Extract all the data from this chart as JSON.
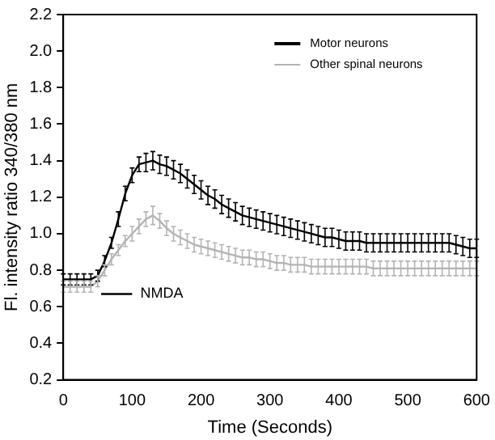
{
  "chart_data": {
    "type": "line",
    "xlabel": "Time (Seconds)",
    "ylabel": "Fl. intensity ratio 340/380 nm",
    "x": [
      0,
      10,
      20,
      30,
      40,
      50,
      60,
      70,
      80,
      90,
      100,
      110,
      120,
      130,
      140,
      150,
      160,
      170,
      180,
      190,
      200,
      210,
      220,
      230,
      240,
      250,
      260,
      270,
      280,
      290,
      300,
      310,
      320,
      330,
      340,
      350,
      360,
      370,
      380,
      390,
      400,
      410,
      420,
      430,
      440,
      450,
      460,
      470,
      480,
      490,
      500,
      510,
      520,
      530,
      540,
      550,
      560,
      570,
      580,
      590,
      600
    ],
    "series": [
      {
        "name": "Motor neurons",
        "color": "#000000",
        "values": [
          0.75,
          0.75,
          0.75,
          0.75,
          0.75,
          0.77,
          0.85,
          0.95,
          1.08,
          1.22,
          1.32,
          1.38,
          1.39,
          1.4,
          1.38,
          1.37,
          1.35,
          1.33,
          1.3,
          1.27,
          1.24,
          1.21,
          1.19,
          1.16,
          1.14,
          1.12,
          1.1,
          1.09,
          1.08,
          1.07,
          1.06,
          1.05,
          1.04,
          1.03,
          1.02,
          1.01,
          1.0,
          0.99,
          0.98,
          0.98,
          0.97,
          0.96,
          0.96,
          0.96,
          0.95,
          0.95,
          0.95,
          0.95,
          0.95,
          0.95,
          0.95,
          0.95,
          0.95,
          0.95,
          0.95,
          0.95,
          0.95,
          0.94,
          0.93,
          0.92,
          0.92
        ],
        "errors": [
          0.03,
          0.03,
          0.03,
          0.03,
          0.03,
          0.03,
          0.03,
          0.03,
          0.04,
          0.04,
          0.04,
          0.04,
          0.05,
          0.05,
          0.05,
          0.05,
          0.05,
          0.05,
          0.05,
          0.05,
          0.05,
          0.05,
          0.05,
          0.05,
          0.05,
          0.05,
          0.05,
          0.05,
          0.05,
          0.05,
          0.05,
          0.05,
          0.05,
          0.05,
          0.05,
          0.05,
          0.05,
          0.05,
          0.05,
          0.05,
          0.05,
          0.05,
          0.05,
          0.05,
          0.05,
          0.05,
          0.05,
          0.05,
          0.05,
          0.05,
          0.05,
          0.05,
          0.05,
          0.05,
          0.05,
          0.05,
          0.05,
          0.05,
          0.05,
          0.05,
          0.05
        ]
      },
      {
        "name": "Other spinal neurons",
        "color": "#b4b4b4",
        "values": [
          0.71,
          0.71,
          0.71,
          0.71,
          0.71,
          0.74,
          0.8,
          0.86,
          0.91,
          0.96,
          1.0,
          1.04,
          1.08,
          1.1,
          1.07,
          1.03,
          1.0,
          0.98,
          0.96,
          0.94,
          0.93,
          0.92,
          0.91,
          0.9,
          0.89,
          0.88,
          0.87,
          0.87,
          0.86,
          0.86,
          0.85,
          0.84,
          0.84,
          0.83,
          0.83,
          0.83,
          0.82,
          0.82,
          0.82,
          0.82,
          0.82,
          0.82,
          0.82,
          0.82,
          0.82,
          0.81,
          0.81,
          0.81,
          0.81,
          0.81,
          0.81,
          0.81,
          0.81,
          0.81,
          0.81,
          0.81,
          0.81,
          0.81,
          0.81,
          0.81,
          0.81
        ],
        "errors": [
          0.03,
          0.03,
          0.03,
          0.03,
          0.03,
          0.03,
          0.03,
          0.03,
          0.03,
          0.03,
          0.04,
          0.04,
          0.04,
          0.05,
          0.04,
          0.04,
          0.04,
          0.04,
          0.04,
          0.04,
          0.04,
          0.04,
          0.04,
          0.04,
          0.04,
          0.04,
          0.04,
          0.04,
          0.04,
          0.04,
          0.04,
          0.04,
          0.04,
          0.04,
          0.04,
          0.04,
          0.04,
          0.04,
          0.04,
          0.04,
          0.04,
          0.04,
          0.04,
          0.04,
          0.04,
          0.04,
          0.04,
          0.04,
          0.04,
          0.04,
          0.04,
          0.04,
          0.04,
          0.04,
          0.04,
          0.04,
          0.04,
          0.04,
          0.04,
          0.04,
          0.04
        ]
      },
      {
        "name": "NMDA",
        "color": "#000000",
        "x": [
          55,
          100
        ],
        "values": [
          0.67,
          0.67
        ]
      }
    ],
    "xlim": [
      0,
      600
    ],
    "xticks": [
      0,
      100,
      200,
      300,
      400,
      500,
      600
    ],
    "ylim": [
      0.2,
      2.2
    ],
    "yticks": [
      {
        "value": 0.2,
        "label": "0.2"
      },
      {
        "value": 0.4,
        "label": "0.4"
      },
      {
        "value": 0.6,
        "label": "0.6"
      },
      {
        "value": 0.8,
        "label": "0.8"
      },
      {
        "value": 1.0,
        "label": "1.0"
      },
      {
        "value": 1.2,
        "label": "1.2"
      },
      {
        "value": 1.4,
        "label": "1.4"
      },
      {
        "value": 1.6,
        "label": "1.6"
      },
      {
        "value": 1.8,
        "label": "1.8"
      },
      {
        "value": 2.0,
        "label": "2.0"
      },
      {
        "value": 2.2,
        "label": "2.2"
      }
    ],
    "grid": false,
    "legend": "top right",
    "line_style": "solid"
  }
}
